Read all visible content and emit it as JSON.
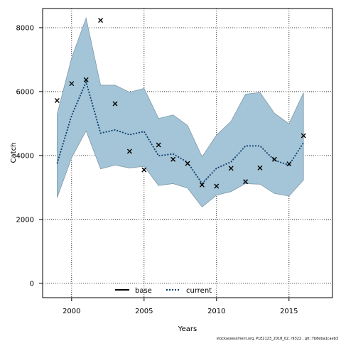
{
  "chart_data": {
    "type": "line",
    "title": "",
    "xlabel": "Years",
    "ylabel": "Catch",
    "xlim": [
      1998,
      2018
    ],
    "ylim": [
      -450,
      8600
    ],
    "x_ticks": [
      2000,
      2005,
      2010,
      2015
    ],
    "y_ticks": [
      0,
      2000,
      4000,
      6000,
      8000
    ],
    "grid": true,
    "legend_position": "bottom-center",
    "x": [
      1999,
      2000,
      2001,
      2002,
      2003,
      2004,
      2005,
      2006,
      2007,
      2008,
      2009,
      2010,
      2011,
      2012,
      2013,
      2014,
      2015,
      2016
    ],
    "series": [
      {
        "name": "current",
        "kind": "line",
        "style": "dotted",
        "color": "#0b3d6b",
        "values": [
          3750,
          5250,
          6300,
          4700,
          4800,
          4650,
          4750,
          3990,
          4050,
          3790,
          3120,
          3600,
          3800,
          4300,
          4300,
          3850,
          3700,
          4400
        ]
      },
      {
        "name": "",
        "kind": "band",
        "color": "#a4c5d8",
        "lower": [
          2680,
          3930,
          4770,
          3580,
          3700,
          3610,
          3660,
          3060,
          3120,
          2980,
          2390,
          2760,
          2870,
          3120,
          3100,
          2810,
          2730,
          3230
        ],
        "upper": [
          5290,
          7050,
          8300,
          6200,
          6200,
          5980,
          6100,
          5160,
          5270,
          4940,
          3960,
          4640,
          5070,
          5920,
          5970,
          5320,
          4990,
          5960
        ]
      },
      {
        "name": "",
        "kind": "points",
        "marker": "x",
        "color": "#000000",
        "values": [
          5720,
          6250,
          6370,
          8230,
          5620,
          4130,
          3550,
          4330,
          3880,
          3750,
          3080,
          3040,
          3600,
          3180,
          3610,
          3880,
          3740,
          4620
        ]
      }
    ],
    "legend": [
      {
        "label": "base",
        "style": "solid",
        "color": "#000000"
      },
      {
        "label": "current",
        "style": "dotted",
        "color": "#0b3d6b"
      }
    ]
  },
  "credit": "stockassessment.org, PLE2123_2018_02, r9322 , git: 7b8eba1caeb3"
}
